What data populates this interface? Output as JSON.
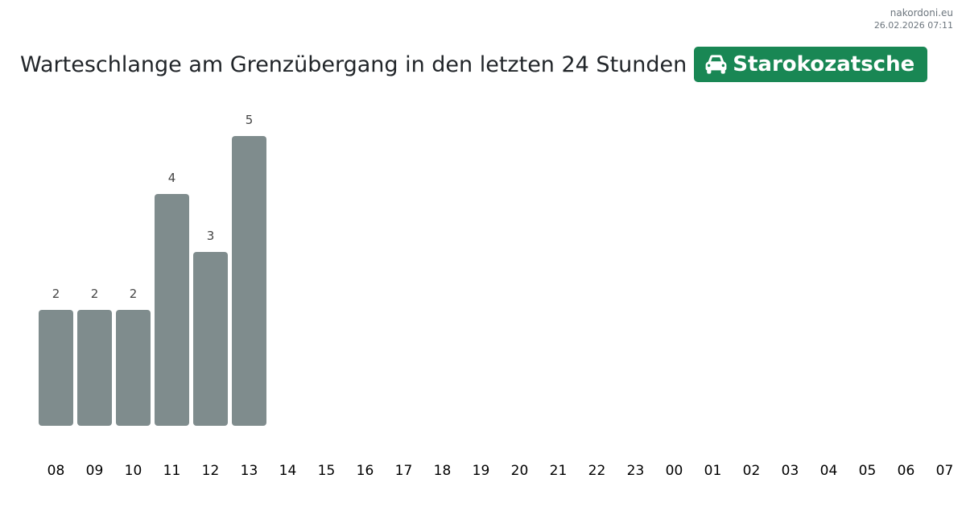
{
  "source": {
    "site": "nakordoni.eu",
    "timestamp": "26.02.2026 07:11"
  },
  "header": {
    "title": "Warteschlange am Grenzübergang in den letzten 24 Stunden",
    "crossing_label": "Starokozatsche",
    "crossing_icon": "car-icon",
    "crossing_color": "#198754"
  },
  "chart_data": {
    "type": "bar",
    "title": "Warteschlange am Grenzübergang in den letzten 24 Stunden",
    "xlabel": "",
    "ylabel": "",
    "categories": [
      "08",
      "09",
      "10",
      "11",
      "12",
      "13",
      "14",
      "15",
      "16",
      "17",
      "18",
      "19",
      "20",
      "21",
      "22",
      "23",
      "00",
      "01",
      "02",
      "03",
      "04",
      "05",
      "06",
      "07"
    ],
    "values": [
      2,
      2,
      2,
      4,
      3,
      5,
      null,
      null,
      null,
      null,
      null,
      null,
      null,
      null,
      null,
      null,
      null,
      null,
      null,
      null,
      null,
      null,
      null,
      null
    ],
    "ylim": [
      0,
      5
    ],
    "bar_color": "#7f8c8d",
    "grid": false,
    "data_labels": true
  }
}
